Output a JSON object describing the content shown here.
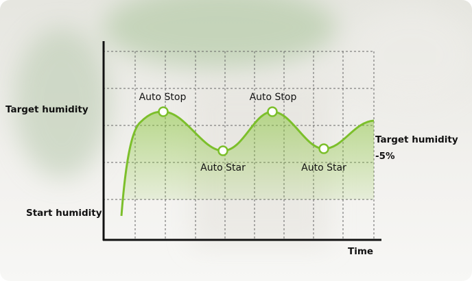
{
  "y_axis_labels": {
    "top": "Target humidity",
    "bottom": "Start humidity"
  },
  "x_axis_label": "Time",
  "markers": [
    {
      "label": "Auto Stop"
    },
    {
      "label": "Auto Star"
    },
    {
      "label": "Auto Stop"
    },
    {
      "label": "Auto Star"
    }
  ],
  "side_label": {
    "line1": "Target humidity",
    "line2": "-5%"
  }
}
